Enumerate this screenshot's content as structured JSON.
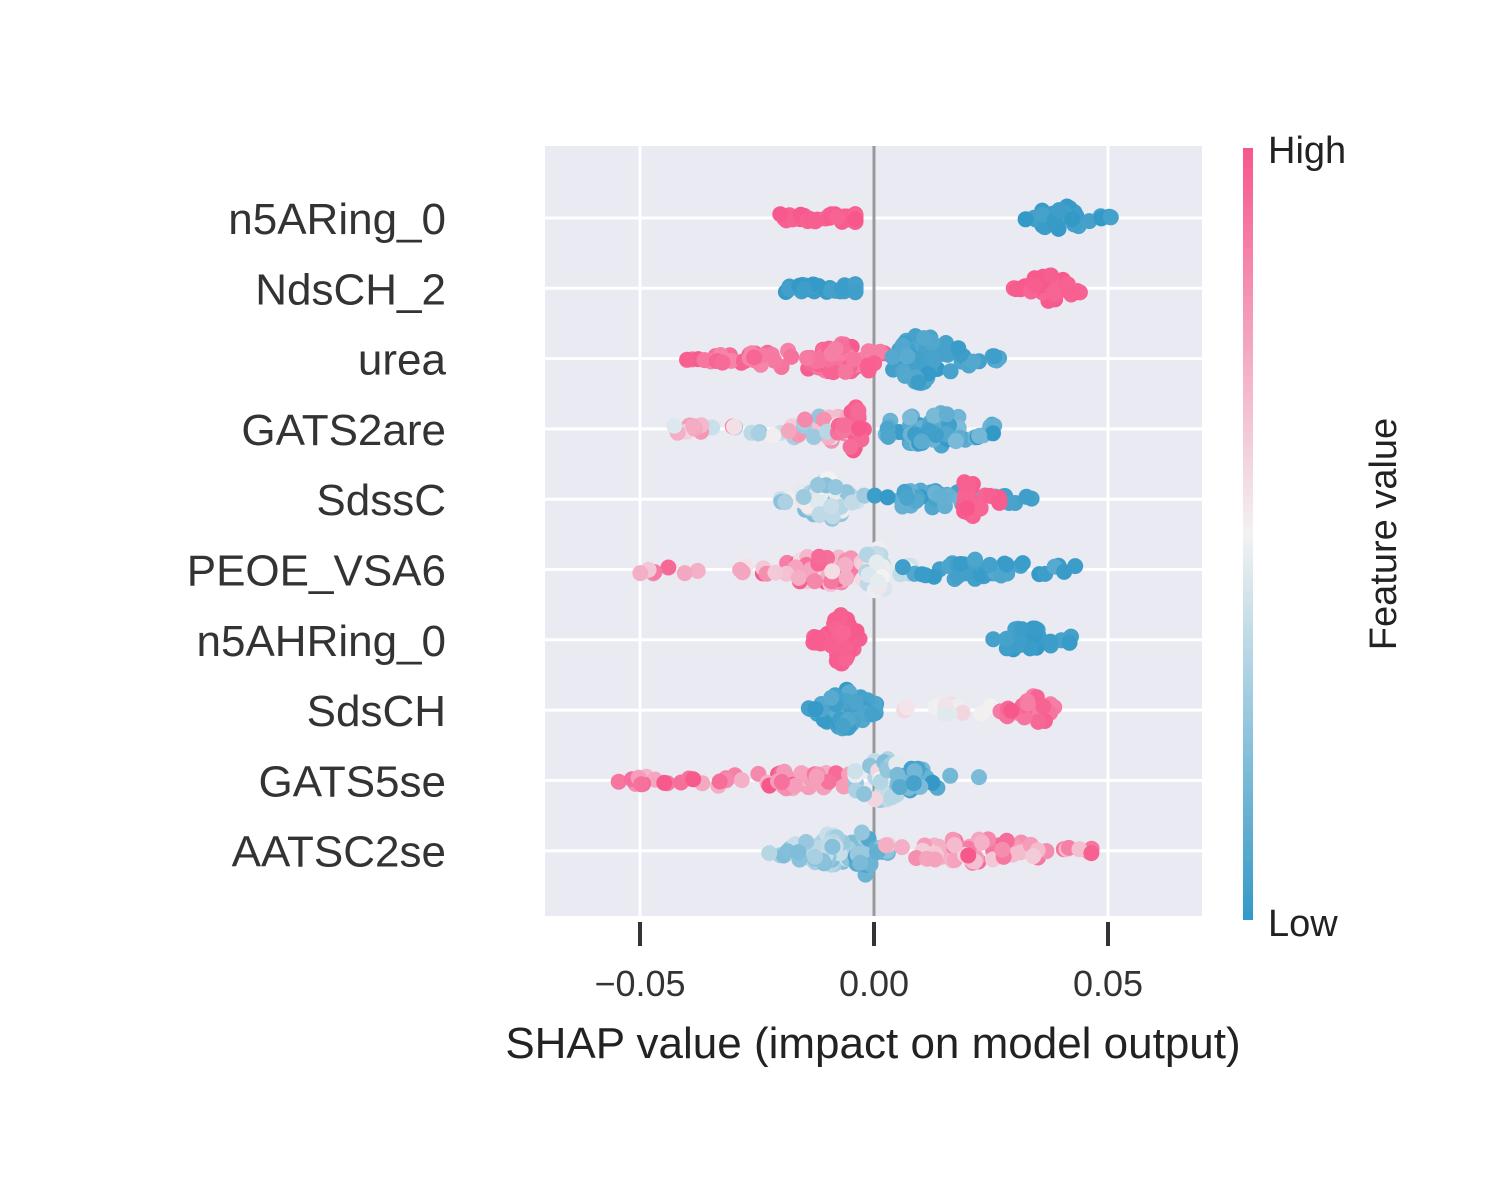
{
  "chart_data": {
    "type": "scatter",
    "subtype": "shap-beeswarm",
    "xlabel": "SHAP value (impact on model output)",
    "xlim": [
      -0.07,
      0.07
    ],
    "xticks": [
      -0.05,
      0.0,
      0.05
    ],
    "xtick_labels": [
      "−0.05",
      "0.00",
      "0.05"
    ],
    "grid": true,
    "colorbar": {
      "title": "Feature value",
      "high_label": "High",
      "low_label": "Low",
      "high_color": "#f7578b",
      "mid_color": "#f2f2f2",
      "low_color": "#3399c7",
      "placement": "right"
    },
    "features": [
      {
        "name": "n5ARing_0",
        "clusters": [
          {
            "min": -0.021,
            "max": -0.004,
            "density": 0.009,
            "vmin": 0.95,
            "vmax": 1.0,
            "n": 70,
            "spread": 1.0
          },
          {
            "min": 0.032,
            "max": 0.053,
            "density": 0.04,
            "vmin": 0.0,
            "vmax": 0.05,
            "n": 35,
            "spread": 0.4
          }
        ]
      },
      {
        "name": "NdsCH_2",
        "clusters": [
          {
            "min": -0.019,
            "max": -0.004,
            "density": 0.008,
            "vmin": 0.0,
            "vmax": 0.05,
            "n": 70,
            "spread": 1.0
          },
          {
            "min": 0.029,
            "max": 0.045,
            "density": 0.037,
            "vmin": 0.95,
            "vmax": 1.0,
            "n": 35,
            "spread": 0.45
          }
        ]
      },
      {
        "name": "urea",
        "clusters": [
          {
            "min": -0.041,
            "max": 0.003,
            "density": -0.007,
            "vmin": 0.85,
            "vmax": 1.0,
            "n": 90,
            "spread": 0.5
          },
          {
            "min": 0.003,
            "max": 0.027,
            "density": 0.01,
            "vmin": 0.0,
            "vmax": 0.1,
            "n": 80,
            "spread": 1.0
          }
        ]
      },
      {
        "name": "GATS2are",
        "clusters": [
          {
            "min": -0.043,
            "max": -0.003,
            "density": -0.01,
            "vmin": 0.25,
            "vmax": 0.85,
            "n": 70,
            "spread": 0.5
          },
          {
            "min": -0.008,
            "max": -0.002,
            "density": -0.004,
            "vmin": 0.9,
            "vmax": 1.0,
            "n": 30,
            "spread": 1.0
          },
          {
            "min": 0.0,
            "max": 0.028,
            "density": 0.012,
            "vmin": 0.0,
            "vmax": 0.2,
            "n": 60,
            "spread": 0.7
          }
        ]
      },
      {
        "name": "SdssC",
        "clusters": [
          {
            "min": -0.02,
            "max": -0.002,
            "density": -0.01,
            "vmin": 0.2,
            "vmax": 0.55,
            "n": 70,
            "spread": 0.8
          },
          {
            "min": 0.0,
            "max": 0.035,
            "density": 0.012,
            "vmin": 0.0,
            "vmax": 0.15,
            "n": 40,
            "spread": 0.3
          },
          {
            "min": 0.019,
            "max": 0.027,
            "density": 0.02,
            "vmin": 0.95,
            "vmax": 1.0,
            "n": 25,
            "spread": 0.9
          }
        ]
      },
      {
        "name": "PEOE_VSA6",
        "clusters": [
          {
            "min": -0.05,
            "max": 0.0,
            "density": -0.01,
            "vmin": 0.55,
            "vmax": 1.0,
            "n": 70,
            "spread": 0.5
          },
          {
            "min": -0.002,
            "max": 0.01,
            "density": 0.001,
            "vmin": 0.3,
            "vmax": 0.55,
            "n": 40,
            "spread": 0.9
          },
          {
            "min": 0.005,
            "max": 0.043,
            "density": 0.02,
            "vmin": 0.0,
            "vmax": 0.1,
            "n": 45,
            "spread": 0.3
          }
        ]
      },
      {
        "name": "n5AHRing_0",
        "clusters": [
          {
            "min": -0.013,
            "max": -0.003,
            "density": -0.007,
            "vmin": 0.95,
            "vmax": 1.0,
            "n": 80,
            "spread": 1.0
          },
          {
            "min": 0.025,
            "max": 0.044,
            "density": 0.032,
            "vmin": 0.0,
            "vmax": 0.05,
            "n": 30,
            "spread": 0.45
          }
        ]
      },
      {
        "name": "SdsCH",
        "clusters": [
          {
            "min": -0.014,
            "max": 0.001,
            "density": -0.006,
            "vmin": 0.0,
            "vmax": 0.1,
            "n": 70,
            "spread": 0.8
          },
          {
            "min": 0.006,
            "max": 0.025,
            "density": 0.015,
            "vmin": 0.45,
            "vmax": 0.6,
            "n": 12,
            "spread": 0.1
          },
          {
            "min": 0.025,
            "max": 0.04,
            "density": 0.034,
            "vmin": 0.85,
            "vmax": 1.0,
            "n": 25,
            "spread": 0.5
          }
        ]
      },
      {
        "name": "GATS5se",
        "clusters": [
          {
            "min": -0.057,
            "max": -0.005,
            "density": -0.015,
            "vmin": 0.7,
            "vmax": 1.0,
            "n": 65,
            "spread": 0.25
          },
          {
            "min": -0.005,
            "max": 0.013,
            "density": 0.002,
            "vmin": 0.2,
            "vmax": 0.6,
            "n": 50,
            "spread": 0.9
          },
          {
            "min": 0.005,
            "max": 0.024,
            "density": 0.009,
            "vmin": 0.0,
            "vmax": 0.2,
            "n": 20,
            "spread": 0.4
          }
        ]
      },
      {
        "name": "AATSC2se",
        "clusters": [
          {
            "min": -0.023,
            "max": -0.002,
            "density": -0.01,
            "vmin": 0.2,
            "vmax": 0.4,
            "n": 55,
            "spread": 0.6
          },
          {
            "min": -0.004,
            "max": 0.003,
            "density": -0.002,
            "vmin": 0.05,
            "vmax": 0.3,
            "n": 25,
            "spread": 1.0
          },
          {
            "min": 0.002,
            "max": 0.054,
            "density": 0.02,
            "vmin": 0.6,
            "vmax": 1.0,
            "n": 65,
            "spread": 0.4
          }
        ]
      }
    ]
  }
}
